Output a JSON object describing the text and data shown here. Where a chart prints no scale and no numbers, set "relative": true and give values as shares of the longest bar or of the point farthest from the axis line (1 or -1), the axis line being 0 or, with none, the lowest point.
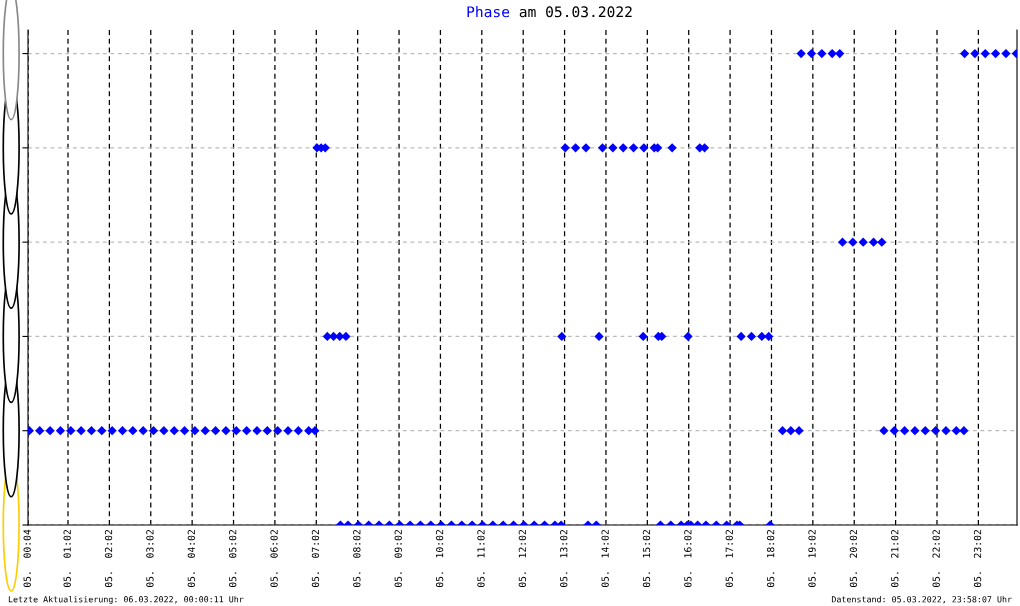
{
  "chart_data": {
    "type": "scatter",
    "title": "Phase am 05.03.2022",
    "x": [
      "2022-03-05T00:06",
      "2022-03-05T00:21",
      "2022-03-05T00:36",
      "2022-03-05T00:51",
      "2022-03-05T01:06",
      "2022-03-05T01:21",
      "2022-03-05T01:36",
      "2022-03-05T01:51",
      "2022-03-05T02:06",
      "2022-03-05T02:21",
      "2022-03-05T02:36",
      "2022-03-05T02:51",
      "2022-03-05T03:06",
      "2022-03-05T03:21",
      "2022-03-05T03:36",
      "2022-03-05T03:51",
      "2022-03-05T04:06",
      "2022-03-05T04:21",
      "2022-03-05T04:36",
      "2022-03-05T04:51",
      "2022-03-05T05:06",
      "2022-03-05T05:21",
      "2022-03-05T05:36",
      "2022-03-05T05:51",
      "2022-03-05T06:06",
      "2022-03-05T06:21",
      "2022-03-05T06:36",
      "2022-03-05T06:51",
      "2022-03-05T07:00",
      "2022-03-05T07:03",
      "2022-03-05T07:09",
      "2022-03-05T07:15",
      "2022-03-05T07:18",
      "2022-03-05T07:27",
      "2022-03-05T07:36",
      "2022-03-05T07:45",
      "2022-03-05T07:37",
      "2022-03-05T07:48",
      "2022-03-05T08:03",
      "2022-03-05T08:18",
      "2022-03-05T08:33",
      "2022-03-05T08:48",
      "2022-03-05T09:03",
      "2022-03-05T09:18",
      "2022-03-05T09:33",
      "2022-03-05T09:48",
      "2022-03-05T10:03",
      "2022-03-05T10:18",
      "2022-03-05T10:33",
      "2022-03-05T10:48",
      "2022-03-05T11:03",
      "2022-03-05T11:18",
      "2022-03-05T11:33",
      "2022-03-05T11:48",
      "2022-03-05T12:03",
      "2022-03-05T12:18",
      "2022-03-05T12:33",
      "2022-03-05T12:48",
      "2022-03-05T12:57",
      "2022-03-05T12:58",
      "2022-03-05T13:03",
      "2022-03-05T13:18",
      "2022-03-05T13:33",
      "2022-03-05T13:36",
      "2022-03-05T13:48",
      "2022-03-05T13:52",
      "2022-03-05T13:57",
      "2022-03-05T14:12",
      "2022-03-05T14:27",
      "2022-03-05T14:42",
      "2022-03-05T14:57",
      "2022-03-05T15:12",
      "2022-03-05T15:17",
      "2022-03-05T14:56",
      "2022-03-05T15:18",
      "2022-03-05T15:23",
      "2022-03-05T15:38",
      "2022-03-05T15:21",
      "2022-03-05T15:36",
      "2022-03-05T15:51",
      "2022-03-05T16:00",
      "2022-03-05T16:01",
      "2022-03-05T16:05",
      "2022-03-05T16:15",
      "2022-03-05T16:18",
      "2022-03-05T16:25",
      "2022-03-05T16:27",
      "2022-03-05T16:42",
      "2022-03-05T16:57",
      "2022-03-05T17:12",
      "2022-03-05T17:16",
      "2022-03-05T17:18",
      "2022-03-05T17:33",
      "2022-03-05T17:48",
      "2022-03-05T17:58",
      "2022-03-05T18:00",
      "2022-03-05T18:18",
      "2022-03-05T18:30",
      "2022-03-05T18:42",
      "2022-03-05T18:45",
      "2022-03-05T19:00",
      "2022-03-05T19:15",
      "2022-03-05T19:30",
      "2022-03-05T19:41",
      "2022-03-05T19:45",
      "2022-03-05T20:00",
      "2022-03-05T20:15",
      "2022-03-05T20:30",
      "2022-03-05T20:42",
      "2022-03-05T20:45",
      "2022-03-05T21:00",
      "2022-03-05T21:15",
      "2022-03-05T21:30",
      "2022-03-05T21:45",
      "2022-03-05T22:00",
      "2022-03-05T22:15",
      "2022-03-05T22:30",
      "2022-03-05T22:41",
      "2022-03-05T22:42",
      "2022-03-05T22:57",
      "2022-03-05T23:12",
      "2022-03-05T23:27",
      "2022-03-05T23:42",
      "2022-03-05T23:57"
    ],
    "series": [
      {
        "color": "#0000ff",
        "values": [
          0.2,
          0.2,
          0.2,
          0.2,
          0.2,
          0.2,
          0.2,
          0.2,
          0.2,
          0.2,
          0.2,
          0.2,
          0.2,
          0.2,
          0.2,
          0.2,
          0.2,
          0.2,
          0.2,
          0.2,
          0.2,
          0.2,
          0.2,
          0.2,
          0.2,
          0.2,
          0.2,
          0.2,
          0.2,
          0.8,
          0.8,
          0.8,
          0.4,
          0.4,
          0.4,
          0.4,
          0,
          0,
          0,
          0,
          0,
          0,
          0,
          0,
          0,
          0,
          0,
          0,
          0,
          0,
          0,
          0,
          0,
          0,
          0,
          0,
          0,
          0,
          0,
          0.4,
          0.8,
          0.8,
          0.8,
          0,
          0,
          0.4,
          0.8,
          0.8,
          0.8,
          0.8,
          0.8,
          0.8,
          0.8,
          0.4,
          0.4,
          0.4,
          0.8,
          0,
          0,
          0,
          0,
          0.4,
          0,
          0,
          0.8,
          0.8,
          0,
          0,
          0,
          0,
          0,
          0.4,
          0.4,
          0.4,
          0.4,
          0,
          0.2,
          0.2,
          0.2,
          1,
          1,
          1,
          1,
          1,
          0.6,
          0.6,
          0.6,
          0.6,
          0.6,
          0.2,
          0.2,
          0.2,
          0.2,
          0.2,
          0.2,
          0.2,
          0.2,
          0.2,
          1,
          1,
          1,
          1,
          1,
          1
        ]
      }
    ],
    "relative": true,
    "xlim": [
      "2022-03-05T00:04",
      "2022-03-05T23:58"
    ],
    "xticks": [
      {
        "value": "2022-03-05T00:04",
        "label": "05.  00:04"
      },
      {
        "value": "2022-03-05T01:02",
        "label": "05.  01:02"
      },
      {
        "value": "2022-03-05T02:02",
        "label": "05.  02:02"
      },
      {
        "value": "2022-03-05T03:02",
        "label": "05.  03:02"
      },
      {
        "value": "2022-03-05T04:02",
        "label": "05.  04:02"
      },
      {
        "value": "2022-03-05T05:02",
        "label": "05.  05:02"
      },
      {
        "value": "2022-03-05T06:02",
        "label": "05.  06:02"
      },
      {
        "value": "2022-03-05T07:02",
        "label": "05.  07:02"
      },
      {
        "value": "2022-03-05T08:02",
        "label": "05.  08:02"
      },
      {
        "value": "2022-03-05T09:02",
        "label": "05.  09:02"
      },
      {
        "value": "2022-03-05T10:02",
        "label": "05.  10:02"
      },
      {
        "value": "2022-03-05T11:02",
        "label": "05.  11:02"
      },
      {
        "value": "2022-03-05T12:02",
        "label": "05.  12:02"
      },
      {
        "value": "2022-03-05T13:02",
        "label": "05.  13:02"
      },
      {
        "value": "2022-03-05T14:02",
        "label": "05.  14:02"
      },
      {
        "value": "2022-03-05T15:02",
        "label": "05.  15:02"
      },
      {
        "value": "2022-03-05T16:02",
        "label": "05.  16:02"
      },
      {
        "value": "2022-03-05T17:02",
        "label": "05.  17:02"
      },
      {
        "value": "2022-03-05T18:02",
        "label": "05.  18:02"
      },
      {
        "value": "2022-03-05T19:02",
        "label": "05.  19:02"
      },
      {
        "value": "2022-03-05T20:02",
        "label": "05.  20:02"
      },
      {
        "value": "2022-03-05T21:02",
        "label": "05.  21:02"
      },
      {
        "value": "2022-03-05T22:02",
        "label": "05.  22:02"
      },
      {
        "value": "2022-03-05T23:02",
        "label": "05.  23:02"
      }
    ],
    "grid": true,
    "marker": "diamond",
    "annotations": [
      "Letzte Aktualisierung: 06.03.2022, 00:00:11 Uhr",
      "Datenstand: 05.03.2022, 23:58:07 Uhr"
    ]
  }
}
